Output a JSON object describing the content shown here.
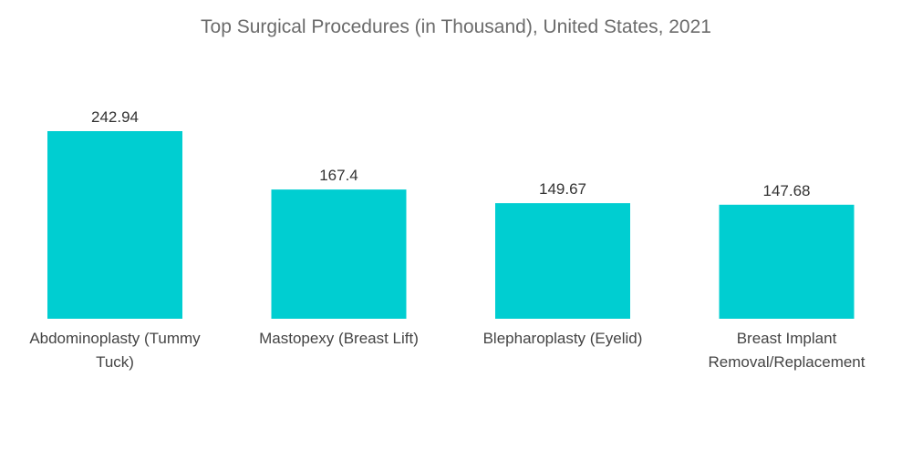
{
  "chart_data": {
    "type": "bar",
    "title": "Top Surgical Procedures (in Thousand), United States, 2021",
    "categories": [
      [
        "Abdominoplasty (Tummy",
        "Tuck)"
      ],
      [
        "Mastopexy (Breast Lift)"
      ],
      [
        "Blepharoplasty (Eyelid)"
      ],
      [
        "Breast Implant",
        "Removal/Replacement"
      ]
    ],
    "values": [
      242.94,
      167.4,
      149.67,
      147.68
    ],
    "value_labels": [
      "242.94",
      "167.4",
      "149.67",
      "147.68"
    ],
    "xlabel": "",
    "ylabel": "",
    "ylim": [
      0,
      242.94
    ],
    "grid": false,
    "legend": "none",
    "bar_color": "#00ced1"
  }
}
